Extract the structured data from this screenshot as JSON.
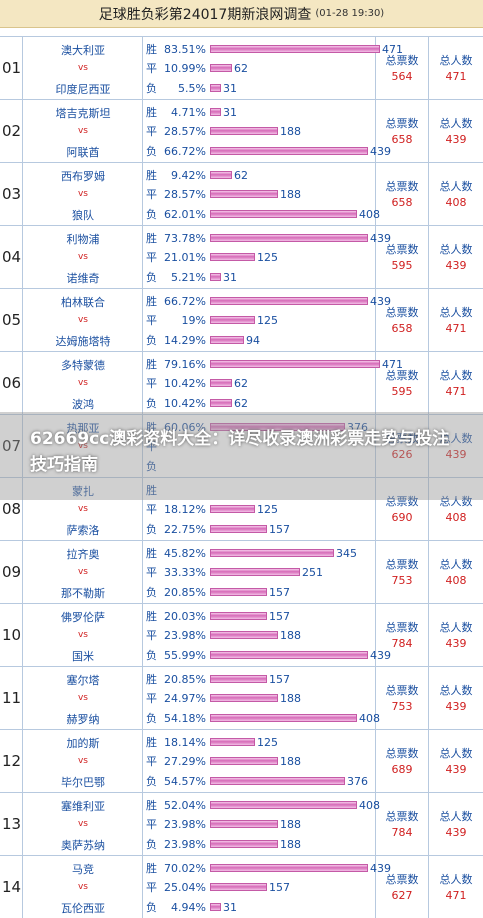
{
  "header": {
    "title": "足球胜负彩第24017期新浪网调查",
    "time": "(01-28 19:30)"
  },
  "labels": {
    "win": "胜",
    "draw": "平",
    "lose": "负",
    "vs": "vs",
    "total_votes": "总票数",
    "total_people": "总人数"
  },
  "rows": [
    {
      "num": "01",
      "home": "澳大利亚",
      "away": "印度尼西亚",
      "win": {
        "pct": "83.51%",
        "count": "471"
      },
      "draw": {
        "pct": "10.99%",
        "count": "62"
      },
      "lose": {
        "pct": "5.5%",
        "count": "31"
      },
      "votes": "564",
      "people": "471"
    },
    {
      "num": "02",
      "home": "塔吉克斯坦",
      "away": "阿联酋",
      "win": {
        "pct": "4.71%",
        "count": "31"
      },
      "draw": {
        "pct": "28.57%",
        "count": "188"
      },
      "lose": {
        "pct": "66.72%",
        "count": "439"
      },
      "votes": "658",
      "people": "439"
    },
    {
      "num": "03",
      "home": "西布罗姆",
      "away": "狼队",
      "win": {
        "pct": "9.42%",
        "count": "62"
      },
      "draw": {
        "pct": "28.57%",
        "count": "188"
      },
      "lose": {
        "pct": "62.01%",
        "count": "408"
      },
      "votes": "658",
      "people": "408"
    },
    {
      "num": "04",
      "home": "利物浦",
      "away": "诺维奇",
      "win": {
        "pct": "73.78%",
        "count": "439"
      },
      "draw": {
        "pct": "21.01%",
        "count": "125"
      },
      "lose": {
        "pct": "5.21%",
        "count": "31"
      },
      "votes": "595",
      "people": "439"
    },
    {
      "num": "05",
      "home": "柏林联合",
      "away": "达姆施塔特",
      "win": {
        "pct": "66.72%",
        "count": "439"
      },
      "draw": {
        "pct": "19%",
        "count": "125"
      },
      "lose": {
        "pct": "14.29%",
        "count": "94"
      },
      "votes": "658",
      "people": "471"
    },
    {
      "num": "06",
      "home": "多特蒙德",
      "away": "波鸿",
      "win": {
        "pct": "79.16%",
        "count": "471"
      },
      "draw": {
        "pct": "10.42%",
        "count": "62"
      },
      "lose": {
        "pct": "10.42%",
        "count": "62"
      },
      "votes": "595",
      "people": "471"
    },
    {
      "num": "07",
      "home": "热那亚",
      "away": "",
      "win": {
        "pct": "60.06%",
        "count": "376"
      },
      "draw": {
        "pct": "",
        "count": ""
      },
      "lose": {
        "pct": "",
        "count": ""
      },
      "votes": "626",
      "people": "439"
    },
    {
      "num": "08",
      "home": "蒙扎",
      "away": "萨索洛",
      "win": {
        "pct": "",
        "count": ""
      },
      "draw": {
        "pct": "18.12%",
        "count": "125"
      },
      "lose": {
        "pct": "22.75%",
        "count": "157"
      },
      "votes": "690",
      "people": "408"
    },
    {
      "num": "09",
      "home": "拉齐奥",
      "away": "那不勒斯",
      "win": {
        "pct": "45.82%",
        "count": "345"
      },
      "draw": {
        "pct": "33.33%",
        "count": "251"
      },
      "lose": {
        "pct": "20.85%",
        "count": "157"
      },
      "votes": "753",
      "people": "408"
    },
    {
      "num": "10",
      "home": "佛罗伦萨",
      "away": "国米",
      "win": {
        "pct": "20.03%",
        "count": "157"
      },
      "draw": {
        "pct": "23.98%",
        "count": "188"
      },
      "lose": {
        "pct": "55.99%",
        "count": "439"
      },
      "votes": "784",
      "people": "439"
    },
    {
      "num": "11",
      "home": "塞尔塔",
      "away": "赫罗纳",
      "win": {
        "pct": "20.85%",
        "count": "157"
      },
      "draw": {
        "pct": "24.97%",
        "count": "188"
      },
      "lose": {
        "pct": "54.18%",
        "count": "408"
      },
      "votes": "753",
      "people": "439"
    },
    {
      "num": "12",
      "home": "加的斯",
      "away": "毕尔巴鄂",
      "win": {
        "pct": "18.14%",
        "count": "125"
      },
      "draw": {
        "pct": "27.29%",
        "count": "188"
      },
      "lose": {
        "pct": "54.57%",
        "count": "376"
      },
      "votes": "689",
      "people": "439"
    },
    {
      "num": "13",
      "home": "塞维利亚",
      "away": "奥萨苏纳",
      "win": {
        "pct": "52.04%",
        "count": "408"
      },
      "draw": {
        "pct": "23.98%",
        "count": "188"
      },
      "lose": {
        "pct": "23.98%",
        "count": "188"
      },
      "votes": "784",
      "people": "439"
    },
    {
      "num": "14",
      "home": "马竞",
      "away": "瓦伦西亚",
      "win": {
        "pct": "70.02%",
        "count": "439"
      },
      "draw": {
        "pct": "25.04%",
        "count": "157"
      },
      "lose": {
        "pct": "4.94%",
        "count": "31"
      },
      "votes": "627",
      "people": "471"
    }
  ],
  "banner": {
    "text": "62669cc澳彩资料大全：详尽收录澳洲彩票走势与投注技巧指南"
  },
  "colors": {
    "header_bg": "#f4e7c2",
    "grid_line": "#b7c9df",
    "team_text": "#1a4fa0",
    "value_text": "#d02020",
    "bar": "#d66bb8"
  }
}
